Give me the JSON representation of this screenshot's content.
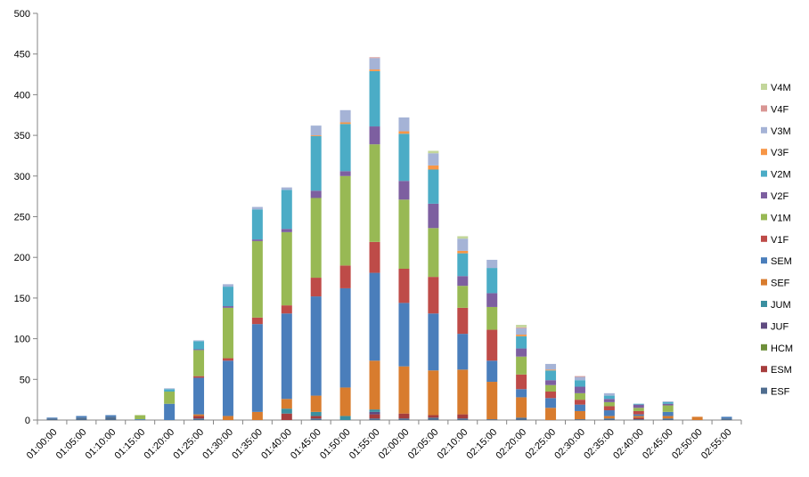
{
  "chart_data": {
    "type": "bar",
    "stacked": true,
    "title": "",
    "xlabel": "",
    "ylabel": "",
    "ylim": [
      0,
      500
    ],
    "yticks": [
      0,
      50,
      100,
      150,
      200,
      250,
      300,
      350,
      400,
      450,
      500
    ],
    "grid": false,
    "legend_position": "right",
    "categories": [
      "01:00:00",
      "01:05:00",
      "01:10:00",
      "01:15:00",
      "01:20:00",
      "01:25:00",
      "01:30:00",
      "01:35:00",
      "01:40:00",
      "01:45:00",
      "01:50:00",
      "01:55:00",
      "02:00:00",
      "02:05:00",
      "02:10:00",
      "02:15:00",
      "02:20:00",
      "02:25:00",
      "02:30:00",
      "02:35:00",
      "02:40:00",
      "02:45:00",
      "02:50:00",
      "02:55:00"
    ],
    "series": [
      {
        "name": "ESF",
        "color": "#4f6d8f",
        "values": [
          2,
          3,
          4,
          0,
          0,
          2,
          0,
          0,
          0,
          2,
          0,
          2,
          2,
          3,
          2,
          1,
          3,
          0,
          1,
          2,
          1,
          2,
          0,
          2
        ]
      },
      {
        "name": "ESM",
        "color": "#a63d3d",
        "values": [
          0,
          0,
          0,
          0,
          0,
          3,
          0,
          0,
          8,
          3,
          0,
          5,
          6,
          3,
          5,
          0,
          0,
          0,
          0,
          0,
          2,
          0,
          0,
          0
        ]
      },
      {
        "name": "HCM",
        "color": "#6e8f3a",
        "values": [
          0,
          0,
          0,
          0,
          0,
          0,
          0,
          0,
          0,
          0,
          0,
          0,
          0,
          0,
          0,
          0,
          0,
          0,
          0,
          0,
          0,
          0,
          0,
          0
        ]
      },
      {
        "name": "JUF",
        "color": "#5f4a80",
        "values": [
          0,
          0,
          0,
          0,
          0,
          0,
          0,
          0,
          0,
          0,
          0,
          3,
          0,
          0,
          0,
          0,
          0,
          0,
          0,
          0,
          0,
          0,
          0,
          0
        ]
      },
      {
        "name": "JUM",
        "color": "#3a8fa0",
        "values": [
          0,
          0,
          0,
          0,
          0,
          0,
          0,
          0,
          6,
          5,
          5,
          3,
          0,
          0,
          0,
          0,
          0,
          0,
          0,
          0,
          0,
          0,
          0,
          0
        ]
      },
      {
        "name": "SEF",
        "color": "#d87c2e",
        "values": [
          0,
          0,
          0,
          0,
          0,
          2,
          5,
          10,
          12,
          20,
          35,
          60,
          58,
          55,
          55,
          46,
          25,
          15,
          10,
          3,
          2,
          3,
          4,
          0
        ]
      },
      {
        "name": "SEM",
        "color": "#4a7ebb",
        "values": [
          1,
          2,
          2,
          1,
          20,
          45,
          68,
          108,
          105,
          122,
          122,
          108,
          78,
          70,
          44,
          26,
          10,
          12,
          8,
          7,
          2,
          5,
          0,
          2
        ]
      },
      {
        "name": "V1F",
        "color": "#be4b48",
        "values": [
          0,
          0,
          0,
          0,
          0,
          2,
          3,
          8,
          10,
          23,
          28,
          38,
          42,
          45,
          32,
          38,
          18,
          8,
          6,
          5,
          4,
          0,
          0,
          0
        ]
      },
      {
        "name": "V1M",
        "color": "#98b954",
        "values": [
          0,
          0,
          0,
          5,
          15,
          32,
          62,
          94,
          90,
          98,
          110,
          120,
          85,
          60,
          27,
          28,
          22,
          8,
          8,
          5,
          4,
          8,
          0,
          0
        ]
      },
      {
        "name": "V2F",
        "color": "#7d5fa0",
        "values": [
          0,
          0,
          0,
          0,
          0,
          1,
          2,
          2,
          4,
          9,
          6,
          22,
          23,
          30,
          12,
          17,
          10,
          6,
          8,
          4,
          4,
          2,
          0,
          0
        ]
      },
      {
        "name": "V2M",
        "color": "#4bacc6",
        "values": [
          0,
          0,
          0,
          0,
          3,
          10,
          24,
          37,
          48,
          67,
          58,
          68,
          58,
          42,
          28,
          31,
          15,
          12,
          8,
          4,
          1,
          2,
          0,
          0
        ]
      },
      {
        "name": "V3F",
        "color": "#f79646",
        "values": [
          0,
          0,
          0,
          0,
          0,
          0,
          0,
          0,
          0,
          1,
          2,
          2,
          3,
          5,
          3,
          0,
          2,
          1,
          0,
          0,
          0,
          0,
          0,
          0
        ]
      },
      {
        "name": "V3M",
        "color": "#a5b3d6",
        "values": [
          0,
          0,
          0,
          0,
          1,
          1,
          3,
          3,
          3,
          12,
          15,
          14,
          17,
          15,
          15,
          10,
          8,
          7,
          4,
          3,
          0,
          1,
          0,
          0
        ]
      },
      {
        "name": "V4F",
        "color": "#d99694",
        "values": [
          0,
          0,
          0,
          0,
          0,
          0,
          0,
          0,
          0,
          0,
          0,
          1,
          0,
          0,
          0,
          0,
          1,
          0,
          1,
          0,
          0,
          0,
          0,
          0
        ]
      },
      {
        "name": "V4M",
        "color": "#c3d69b",
        "values": [
          0,
          0,
          0,
          0,
          0,
          0,
          0,
          0,
          0,
          0,
          0,
          0,
          0,
          3,
          3,
          0,
          3,
          0,
          0,
          0,
          0,
          0,
          0,
          0
        ]
      }
    ]
  }
}
